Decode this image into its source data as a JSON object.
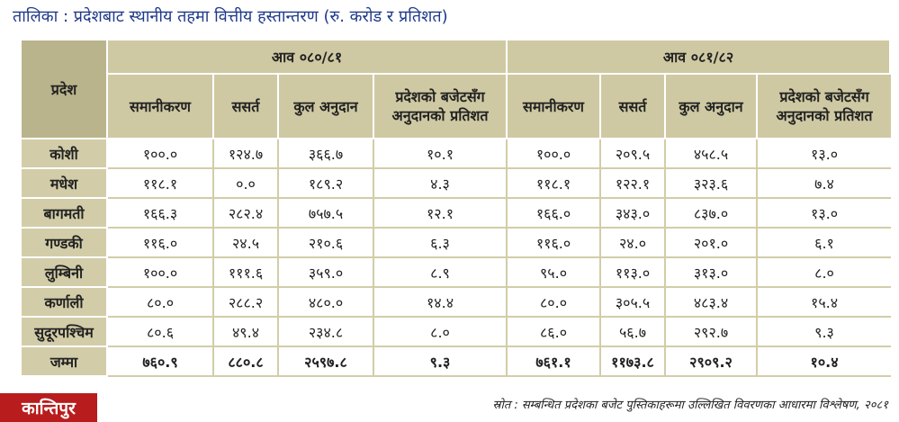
{
  "title": "तालिका : प्रदेशबाट स्थानीय तहमा वित्तीय हस्तान्तरण (रु. करोड र प्रतिशत)",
  "table": {
    "col_pradesh": "प्रदेश",
    "year1": "आव ०८०/८१",
    "year2": "आव ०८१/८२",
    "sub_headers": [
      "समानीकरण",
      "ससर्त",
      "कुल अनुदान",
      "प्रदेशको बजेटसँग अनुदानको प्रतिशत",
      "समानीकरण",
      "ससर्त",
      "कुल अनुदान",
      "प्रदेशको बजेटसँग अनुदानको प्रतिशत"
    ],
    "rows": [
      {
        "name": "कोशी",
        "values": [
          "१००.०",
          "१२४.७",
          "३६६.७",
          "१०.१",
          "१००.०",
          "२०९.५",
          "४५८.५",
          "१३.०"
        ]
      },
      {
        "name": "मधेश",
        "values": [
          "११८.१",
          "०.०",
          "१८९.२",
          "४.३",
          "११८.१",
          "१२२.१",
          "३२३.६",
          "७.४"
        ]
      },
      {
        "name": "बागमती",
        "values": [
          "१६६.३",
          "२८२.४",
          "७५७.५",
          "१२.१",
          "१६६.०",
          "३४३.०",
          "८३७.०",
          "१३.०"
        ]
      },
      {
        "name": "गण्डकी",
        "values": [
          "११६.०",
          "२४.५",
          "२१०.६",
          "६.३",
          "११६.०",
          "२४.०",
          "२०१.०",
          "६.१"
        ]
      },
      {
        "name": "लुम्बिनी",
        "values": [
          "१००.०",
          "१११.६",
          "३५९.०",
          "८.९",
          "९५.०",
          "११३.०",
          "३१३.०",
          "८.०"
        ]
      },
      {
        "name": "कर्णाली",
        "values": [
          "८०.०",
          "२८८.२",
          "४८०.०",
          "१४.४",
          "८०.०",
          "३०५.५",
          "४८३.४",
          "१५.४"
        ]
      },
      {
        "name": "सुदूरपश्चिम",
        "values": [
          "८०.६",
          "४९.४",
          "२३४.८",
          "८.०",
          "८६.०",
          "५६.७",
          "२९२.७",
          "९.३"
        ]
      },
      {
        "name": "जम्मा",
        "values": [
          "७६०.९",
          "८८०.८",
          "२५९७.८",
          "९.३",
          "७६१.१",
          "११७३.८",
          "२९०९.२",
          "१०.४"
        ]
      }
    ]
  },
  "source": "स्रोत : सम्बन्धित प्रदेशका बजेट पुस्तिकाहरूमा उल्लिखित विवरणका आधारमा विश्लेषण, २०८१",
  "logo": "कान्तिपुर"
}
